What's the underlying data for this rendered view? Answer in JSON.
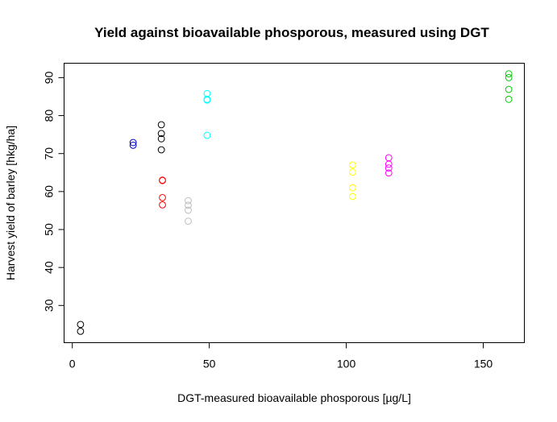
{
  "chart_data": {
    "type": "scatter",
    "title": "Yield against bioavailable phosporous, measured using DGT",
    "xlabel": "DGT-measured bioavailable phosporous [µg/L]",
    "ylabel": "Harvest yield of barley [hkg/ha]",
    "xlim": [
      -3,
      165
    ],
    "ylim": [
      20.2,
      93.8
    ],
    "xticks": [
      0,
      50,
      100,
      150
    ],
    "yticks": [
      30,
      40,
      50,
      60,
      70,
      80,
      90
    ],
    "grid": false,
    "legend": "none",
    "marker": "open-circle",
    "series": [
      {
        "color": "#000000",
        "points": [
          [
            3.0,
            25.0
          ],
          [
            3.0,
            23.2
          ],
          [
            32.5,
            77.6
          ],
          [
            32.5,
            75.3
          ],
          [
            32.5,
            73.9
          ],
          [
            32.5,
            71.0
          ]
        ]
      },
      {
        "color": "#0000CD",
        "points": [
          [
            22.2,
            72.9
          ],
          [
            22.2,
            72.2
          ]
        ]
      },
      {
        "color": "#FF0000",
        "points": [
          [
            32.9,
            63.0
          ],
          [
            32.9,
            62.9
          ],
          [
            32.9,
            58.4
          ],
          [
            32.9,
            56.5
          ]
        ]
      },
      {
        "color": "#BEBEBE",
        "points": [
          [
            42.3,
            57.6
          ],
          [
            42.3,
            56.4
          ],
          [
            42.3,
            55.1
          ],
          [
            42.3,
            52.2
          ]
        ]
      },
      {
        "color": "#00FFFF",
        "points": [
          [
            49.2,
            85.8
          ],
          [
            49.2,
            84.3
          ],
          [
            49.2,
            84.1
          ],
          [
            49.2,
            74.8
          ]
        ]
      },
      {
        "color": "#FFFF00",
        "points": [
          [
            102.3,
            67.0
          ],
          [
            102.3,
            65.1
          ],
          [
            102.3,
            61.0
          ],
          [
            102.3,
            58.7
          ]
        ]
      },
      {
        "color": "#FF00FF",
        "points": [
          [
            115.5,
            68.9
          ],
          [
            115.5,
            67.2
          ],
          [
            115.5,
            66.2
          ],
          [
            115.5,
            64.9
          ]
        ]
      },
      {
        "color": "#00CD00",
        "points": [
          [
            159.3,
            91.0
          ],
          [
            159.3,
            90.0
          ],
          [
            159.3,
            86.9
          ],
          [
            159.3,
            84.3
          ]
        ]
      }
    ]
  }
}
